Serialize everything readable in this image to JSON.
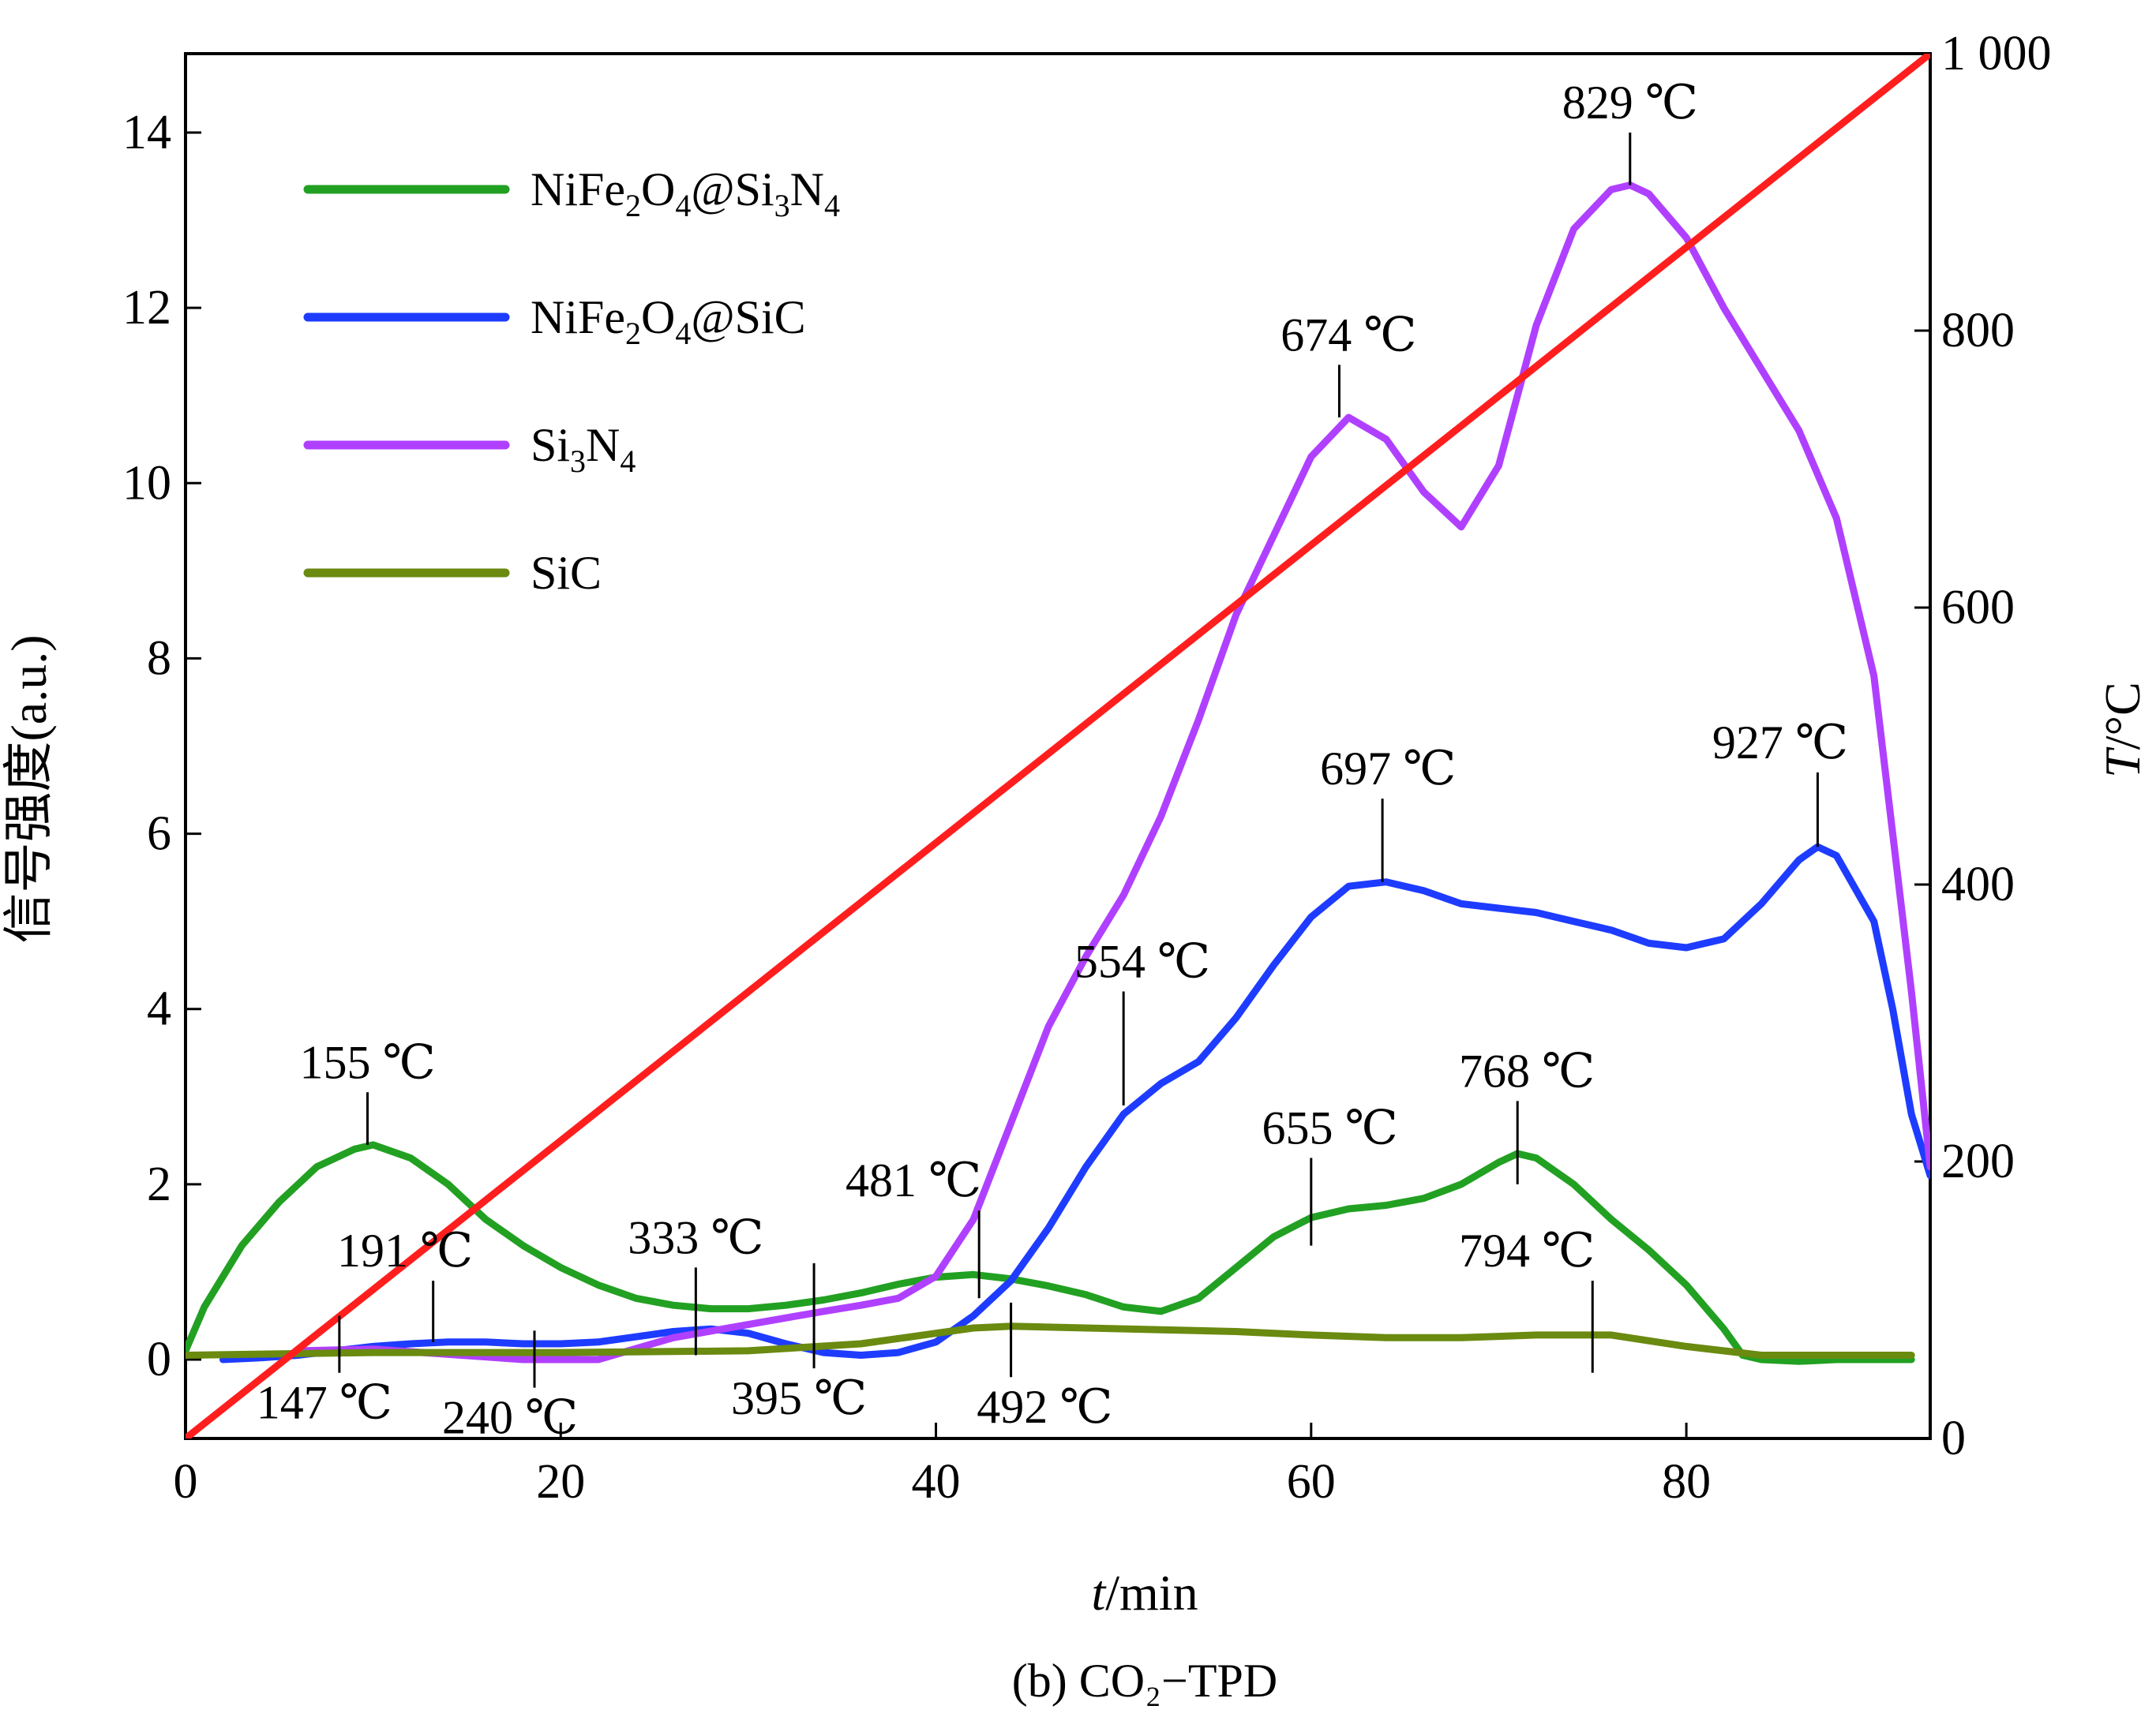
{
  "chart_data": {
    "type": "line",
    "caption": "(b) CO₂−TPD",
    "xlabel": "t/min",
    "ylabel": "信号强度(a.u.)",
    "y2label": "T/°C",
    "xlim": [
      0,
      93
    ],
    "ylim": [
      -0.9,
      14.9
    ],
    "y2lim": [
      0,
      1000
    ],
    "xticks": [
      0,
      20,
      40,
      60,
      80
    ],
    "yticks": [
      0,
      2,
      4,
      6,
      8,
      10,
      12,
      14
    ],
    "y2ticks": [
      0,
      200,
      400,
      600,
      800,
      1000
    ],
    "y2tick_labels": [
      "0",
      "200",
      "400",
      "600",
      "800",
      "1 000"
    ],
    "legend_position": "top-left",
    "legend": [
      {
        "main": "NiFe",
        "sub1": "2",
        "mid": "O",
        "sub2": "4",
        "tail": "@Si",
        "sub3": "3",
        "end": "N",
        "sub4": "4",
        "color": "#22a022"
      },
      {
        "main": "NiFe",
        "sub1": "2",
        "mid": "O",
        "sub2": "4",
        "tail": "@SiC",
        "sub3": "",
        "end": "",
        "sub4": "",
        "color": "#1e3cff"
      },
      {
        "main": "Si",
        "sub1": "3",
        "mid": "N",
        "sub2": "4",
        "tail": "",
        "sub3": "",
        "end": "",
        "sub4": "",
        "color": "#b040ff"
      },
      {
        "main": "SiC",
        "sub1": "",
        "mid": "",
        "sub2": "",
        "tail": "",
        "sub3": "",
        "end": "",
        "sub4": "",
        "color": "#6a8a10"
      }
    ],
    "series": [
      {
        "name": "NiFe2O4@Si3N4",
        "color": "#22a022",
        "points": [
          [
            0,
            0.1
          ],
          [
            1,
            0.6
          ],
          [
            3,
            1.3
          ],
          [
            5,
            1.8
          ],
          [
            7,
            2.2
          ],
          [
            9,
            2.4
          ],
          [
            10,
            2.45
          ],
          [
            12,
            2.3
          ],
          [
            14,
            2.0
          ],
          [
            16,
            1.6
          ],
          [
            18,
            1.3
          ],
          [
            20,
            1.05
          ],
          [
            22,
            0.85
          ],
          [
            24,
            0.7
          ],
          [
            26,
            0.62
          ],
          [
            28,
            0.58
          ],
          [
            30,
            0.58
          ],
          [
            32,
            0.62
          ],
          [
            34,
            0.68
          ],
          [
            36,
            0.76
          ],
          [
            38,
            0.86
          ],
          [
            40,
            0.94
          ],
          [
            42,
            0.97
          ],
          [
            44,
            0.92
          ],
          [
            46,
            0.84
          ],
          [
            48,
            0.74
          ],
          [
            50,
            0.6
          ],
          [
            52,
            0.55
          ],
          [
            54,
            0.7
          ],
          [
            56,
            1.05
          ],
          [
            58,
            1.4
          ],
          [
            60,
            1.62
          ],
          [
            62,
            1.72
          ],
          [
            64,
            1.76
          ],
          [
            66,
            1.84
          ],
          [
            68,
            2.0
          ],
          [
            70,
            2.25
          ],
          [
            71,
            2.35
          ],
          [
            72,
            2.3
          ],
          [
            74,
            2.0
          ],
          [
            76,
            1.6
          ],
          [
            78,
            1.25
          ],
          [
            80,
            0.85
          ],
          [
            82,
            0.35
          ],
          [
            83,
            0.05
          ],
          [
            84,
            0.0
          ],
          [
            86,
            -0.02
          ],
          [
            88,
            0.0
          ],
          [
            90,
            0.0
          ],
          [
            92,
            0.0
          ]
        ]
      },
      {
        "name": "NiFe2O4@SiC",
        "color": "#1e3cff",
        "points": [
          [
            2,
            0.0
          ],
          [
            4,
            0.02
          ],
          [
            6,
            0.05
          ],
          [
            8,
            0.1
          ],
          [
            10,
            0.15
          ],
          [
            12,
            0.18
          ],
          [
            14,
            0.2
          ],
          [
            16,
            0.2
          ],
          [
            18,
            0.18
          ],
          [
            20,
            0.18
          ],
          [
            22,
            0.2
          ],
          [
            24,
            0.26
          ],
          [
            26,
            0.32
          ],
          [
            28,
            0.35
          ],
          [
            30,
            0.3
          ],
          [
            32,
            0.18
          ],
          [
            34,
            0.08
          ],
          [
            36,
            0.05
          ],
          [
            38,
            0.08
          ],
          [
            40,
            0.2
          ],
          [
            42,
            0.5
          ],
          [
            44,
            0.9
          ],
          [
            46,
            1.5
          ],
          [
            48,
            2.2
          ],
          [
            50,
            2.8
          ],
          [
            52,
            3.15
          ],
          [
            54,
            3.4
          ],
          [
            56,
            3.9
          ],
          [
            58,
            4.5
          ],
          [
            60,
            5.05
          ],
          [
            62,
            5.4
          ],
          [
            64,
            5.45
          ],
          [
            66,
            5.35
          ],
          [
            68,
            5.2
          ],
          [
            70,
            5.15
          ],
          [
            72,
            5.1
          ],
          [
            74,
            5.0
          ],
          [
            76,
            4.9
          ],
          [
            78,
            4.75
          ],
          [
            80,
            4.7
          ],
          [
            82,
            4.8
          ],
          [
            84,
            5.2
          ],
          [
            86,
            5.7
          ],
          [
            87,
            5.85
          ],
          [
            88,
            5.75
          ],
          [
            90,
            5.0
          ],
          [
            91,
            4.0
          ],
          [
            92,
            2.8
          ],
          [
            93,
            2.1
          ]
        ]
      },
      {
        "name": "Si3N4",
        "color": "#b040ff",
        "points": [
          [
            6,
            0.1
          ],
          [
            10,
            0.12
          ],
          [
            14,
            0.06
          ],
          [
            18,
            0.0
          ],
          [
            22,
            0.0
          ],
          [
            26,
            0.25
          ],
          [
            30,
            0.4
          ],
          [
            34,
            0.55
          ],
          [
            36,
            0.62
          ],
          [
            38,
            0.7
          ],
          [
            40,
            0.95
          ],
          [
            42,
            1.6
          ],
          [
            44,
            2.7
          ],
          [
            46,
            3.8
          ],
          [
            48,
            4.6
          ],
          [
            50,
            5.3
          ],
          [
            52,
            6.2
          ],
          [
            54,
            7.3
          ],
          [
            56,
            8.5
          ],
          [
            58,
            9.4
          ],
          [
            60,
            10.3
          ],
          [
            62,
            10.75
          ],
          [
            64,
            10.5
          ],
          [
            66,
            9.9
          ],
          [
            68,
            9.5
          ],
          [
            70,
            10.2
          ],
          [
            72,
            11.8
          ],
          [
            74,
            12.9
          ],
          [
            76,
            13.35
          ],
          [
            77,
            13.4
          ],
          [
            78,
            13.3
          ],
          [
            80,
            12.8
          ],
          [
            82,
            12.0
          ],
          [
            84,
            11.3
          ],
          [
            86,
            10.6
          ],
          [
            88,
            9.6
          ],
          [
            90,
            7.8
          ],
          [
            91,
            6.0
          ],
          [
            92,
            4.2
          ],
          [
            93,
            2.2
          ]
        ]
      },
      {
        "name": "SiC",
        "color": "#6a8a10",
        "points": [
          [
            0,
            0.05
          ],
          [
            10,
            0.08
          ],
          [
            20,
            0.08
          ],
          [
            30,
            0.1
          ],
          [
            36,
            0.18
          ],
          [
            40,
            0.3
          ],
          [
            42,
            0.36
          ],
          [
            44,
            0.38
          ],
          [
            48,
            0.36
          ],
          [
            52,
            0.34
          ],
          [
            56,
            0.32
          ],
          [
            60,
            0.28
          ],
          [
            64,
            0.25
          ],
          [
            68,
            0.25
          ],
          [
            72,
            0.28
          ],
          [
            76,
            0.28
          ],
          [
            80,
            0.15
          ],
          [
            84,
            0.05
          ],
          [
            88,
            0.05
          ],
          [
            92,
            0.05
          ]
        ]
      },
      {
        "name": "",
        "color": "#ff1e1e",
        "axis": "right",
        "points": [
          [
            0,
            0
          ],
          [
            93,
            1000
          ]
        ]
      }
    ],
    "annotations": [
      {
        "label": "155 ℃",
        "x": 9.7,
        "y": 2.45,
        "line_len": 0.6,
        "dir": "up",
        "dx": 0
      },
      {
        "label": "191 ℃",
        "x": 13.2,
        "y": 0.2,
        "line_len": 0.7,
        "dir": "up",
        "dx": -1.5
      },
      {
        "label": "333 ℃",
        "x": 27.2,
        "y": 0.05,
        "line_len": 1.0,
        "dir": "up",
        "dx": 0
      },
      {
        "label": "481 ℃",
        "x": 42.3,
        "y": 0.7,
        "line_len": 1.0,
        "dir": "up",
        "dx": -3.5
      },
      {
        "label": "554 ℃",
        "x": 50.0,
        "y": 2.9,
        "line_len": 1.3,
        "dir": "up",
        "dx": 1.0
      },
      {
        "label": "674 ℃",
        "x": 61.5,
        "y": 10.75,
        "line_len": 0.6,
        "dir": "up",
        "dx": 0.5
      },
      {
        "label": "829 ℃",
        "x": 77.0,
        "y": 13.4,
        "line_len": 0.6,
        "dir": "up",
        "dx": 0
      },
      {
        "label": "655 ℃",
        "x": 60.0,
        "y": 1.3,
        "line_len": 1.0,
        "dir": "up",
        "dx": 1.0
      },
      {
        "label": "768 ℃",
        "x": 71.0,
        "y": 2.0,
        "line_len": 0.95,
        "dir": "up",
        "dx": 0.5
      },
      {
        "label": "697 ℃",
        "x": 63.8,
        "y": 5.45,
        "line_len": 0.95,
        "dir": "up",
        "dx": 0.3
      },
      {
        "label": "927 ℃",
        "x": 87.0,
        "y": 5.85,
        "line_len": 0.85,
        "dir": "up",
        "dx": -2.0
      },
      {
        "label": "794 ℃",
        "x": 75.0,
        "y": -0.15,
        "line_len": 1.05,
        "dir": "up",
        "dx": -3.5
      },
      {
        "label": "147 ℃",
        "x": 8.2,
        "y": 0.5,
        "line_len": 0.65,
        "dir": "down",
        "dx": -0.8
      },
      {
        "label": "240 ℃",
        "x": 18.6,
        "y": 0.33,
        "line_len": 0.65,
        "dir": "down",
        "dx": -1.3
      },
      {
        "label": "395 ℃",
        "x": 33.5,
        "y": 1.1,
        "line_len": 1.2,
        "dir": "down",
        "dx": -0.8
      },
      {
        "label": "492 ℃",
        "x": 44.0,
        "y": 0.65,
        "line_len": 0.85,
        "dir": "down",
        "dx": 1.8
      }
    ]
  }
}
